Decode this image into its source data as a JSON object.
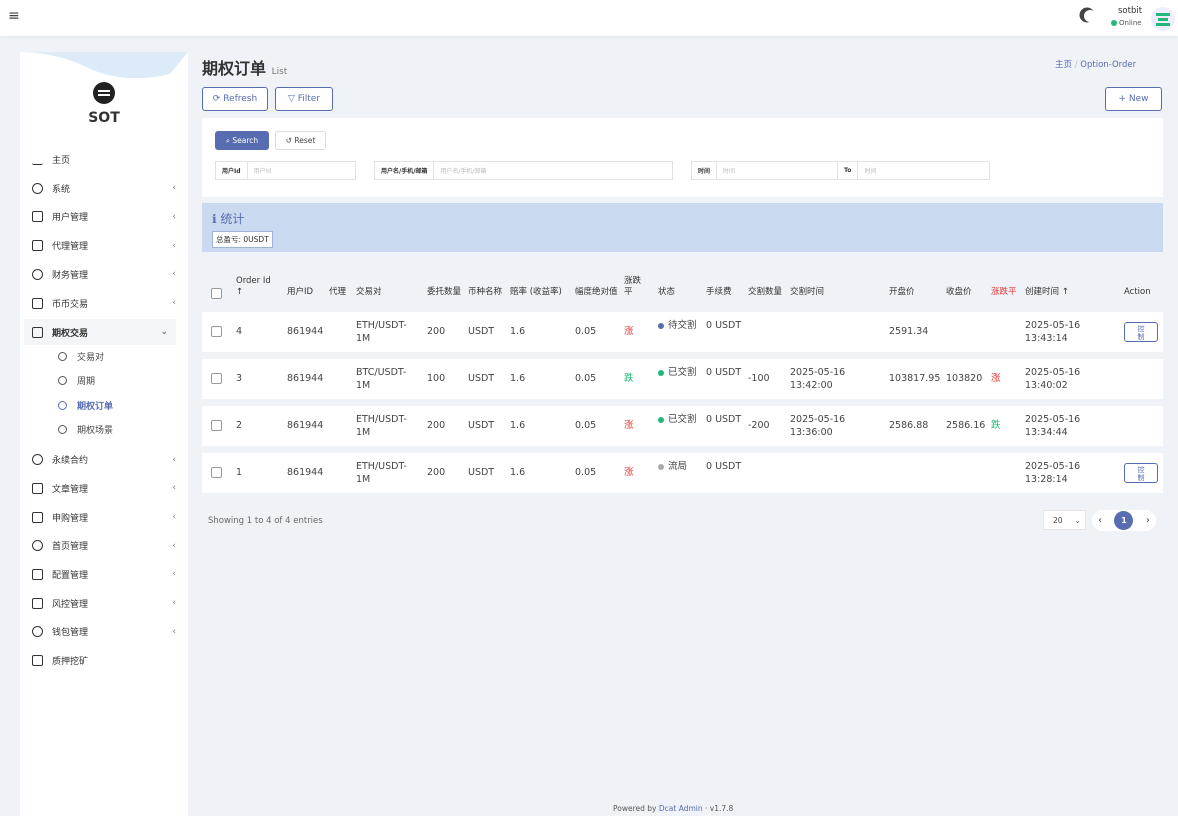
{
  "topbar": {
    "user": "sotbit",
    "status": "Online"
  },
  "sidebar": {
    "brand": "SOT",
    "menu": [
      {
        "label": "主页"
      },
      {
        "label": "系统"
      },
      {
        "label": "用户管理"
      },
      {
        "label": "代理管理"
      },
      {
        "label": "财务管理"
      },
      {
        "label": "币币交易"
      },
      {
        "label": "期权交易",
        "children": [
          "交易对",
          "周期",
          "期权订单",
          "期权场景"
        ]
      },
      {
        "label": "永续合约"
      },
      {
        "label": "文章管理"
      },
      {
        "label": "申购管理"
      },
      {
        "label": "首页管理"
      },
      {
        "label": "配置管理"
      },
      {
        "label": "风控管理"
      },
      {
        "label": "钱包管理"
      },
      {
        "label": "质押挖矿"
      }
    ]
  },
  "header": {
    "title": "期权订单",
    "subtitle": "List",
    "breadcrumb": [
      "主页",
      "Option-Order"
    ]
  },
  "toolbar": {
    "refresh": "Refresh",
    "filter": "Filter",
    "new": "+ New"
  },
  "filter": {
    "search": "Search",
    "reset": "Reset",
    "fields": [
      {
        "label": "用户Id",
        "placeholder": "用户Id"
      },
      {
        "label": "用户名/手机/邮箱",
        "placeholder": "用户名/手机/邮箱"
      },
      {
        "label": "时间",
        "placeholder": "时间",
        "to": "To",
        "placeholder2": "时间"
      }
    ]
  },
  "stats": {
    "title": "统计",
    "total": "总盈亏: 0USDT"
  },
  "table": {
    "headers": [
      "Order Id ↑",
      "用户ID",
      "代理",
      "交易对",
      "委托数量",
      "币种名称",
      "赔率 (收益率)",
      "幅度绝对值",
      "涨跌平",
      "状态",
      "手续费",
      "交割数量",
      "交割时间",
      "开盘价",
      "收盘价",
      "涨跌平",
      "创建时间 ↑",
      "Action"
    ],
    "rows": [
      [
        4,
        861944,
        null,
        "ETH/USDT-1M",
        200,
        "USDT",
        1.6,
        0.05,
        {
          "text": "涨",
          "color": "#e53935"
        },
        {
          "text": "待交割",
          "color": "#586cb1"
        },
        "0 USDT",
        null,
        null,
        2591.34,
        null,
        null,
        "2025-05-16 13:43:14",
        "控制"
      ],
      [
        3,
        861944,
        null,
        "BTC/USDT-1M",
        100,
        "USDT",
        1.6,
        0.05,
        {
          "text": "跌",
          "color": "#21b978"
        },
        {
          "text": "已交割",
          "color": "#21b978"
        },
        "0 USDT",
        -100,
        "2025-05-16 13:42:00",
        103817.95,
        103820,
        {
          "text": "涨",
          "color": "#e53935"
        },
        "2025-05-16 13:40:02",
        null
      ],
      [
        2,
        861944,
        null,
        "ETH/USDT-1M",
        200,
        "USDT",
        1.6,
        0.05,
        {
          "text": "涨",
          "color": "#e53935"
        },
        {
          "text": "已交割",
          "color": "#21b978"
        },
        "0 USDT",
        -200,
        "2025-05-16 13:36:00",
        2586.88,
        2586.16,
        {
          "text": "跌",
          "color": "#21b978"
        },
        "2025-05-16 13:34:44",
        null
      ],
      [
        1,
        861944,
        null,
        "ETH/USDT-1M",
        200,
        "USDT",
        1.6,
        0.05,
        {
          "text": "涨",
          "color": "#e53935"
        },
        {
          "text": "流局",
          "color": "#aaaaaa"
        },
        "0 USDT",
        null,
        null,
        null,
        null,
        null,
        "2025-05-16 13:28:14",
        "控制"
      ]
    ]
  },
  "pagination": {
    "info": "Showing 1 to 4 of 4 entries",
    "per_page": "20",
    "page": "1"
  },
  "footer": {
    "powered": "Powered by",
    "link": "Dcat Admin",
    "version": "· v1.7.8"
  }
}
